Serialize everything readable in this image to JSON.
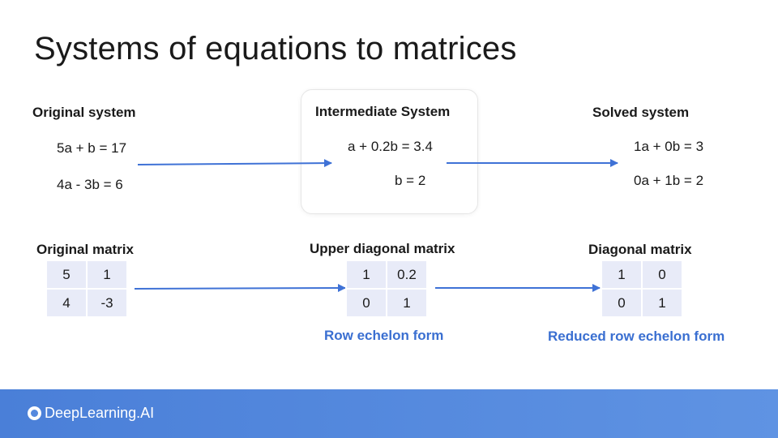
{
  "title": "Systems of equations to matrices",
  "original_system": {
    "heading": "Original system",
    "equations": [
      "5a + b = 17",
      "4a - 3b = 6"
    ]
  },
  "intermediate_system": {
    "heading": "Intermediate System",
    "equations": [
      "a + 0.2b = 3.4",
      "b = 2"
    ]
  },
  "solved_system": {
    "heading": "Solved system",
    "equations": [
      "1a + 0b = 3",
      "0a + 1b = 2"
    ]
  },
  "original_matrix": {
    "heading": "Original matrix",
    "rows": [
      [
        "5",
        "1"
      ],
      [
        "4",
        "-3"
      ]
    ]
  },
  "upper_diagonal_matrix": {
    "heading": "Upper diagonal matrix",
    "rows": [
      [
        "1",
        "0.2"
      ],
      [
        "0",
        "1"
      ]
    ],
    "form_label": "Row echelon form"
  },
  "diagonal_matrix": {
    "heading": "Diagonal matrix",
    "rows": [
      [
        "1",
        "0"
      ],
      [
        "0",
        "1"
      ]
    ],
    "form_label": "Reduced row echelon form"
  },
  "footer": {
    "brand": "DeepLearning.AI"
  },
  "colors": {
    "arrow": "#3f72d6",
    "accent_text": "#3a6fd1",
    "matrix_cell": "#e8ebf8",
    "footer": "#4f86dc"
  },
  "icons": {
    "logo": "deeplearning-ai-logo-icon"
  }
}
